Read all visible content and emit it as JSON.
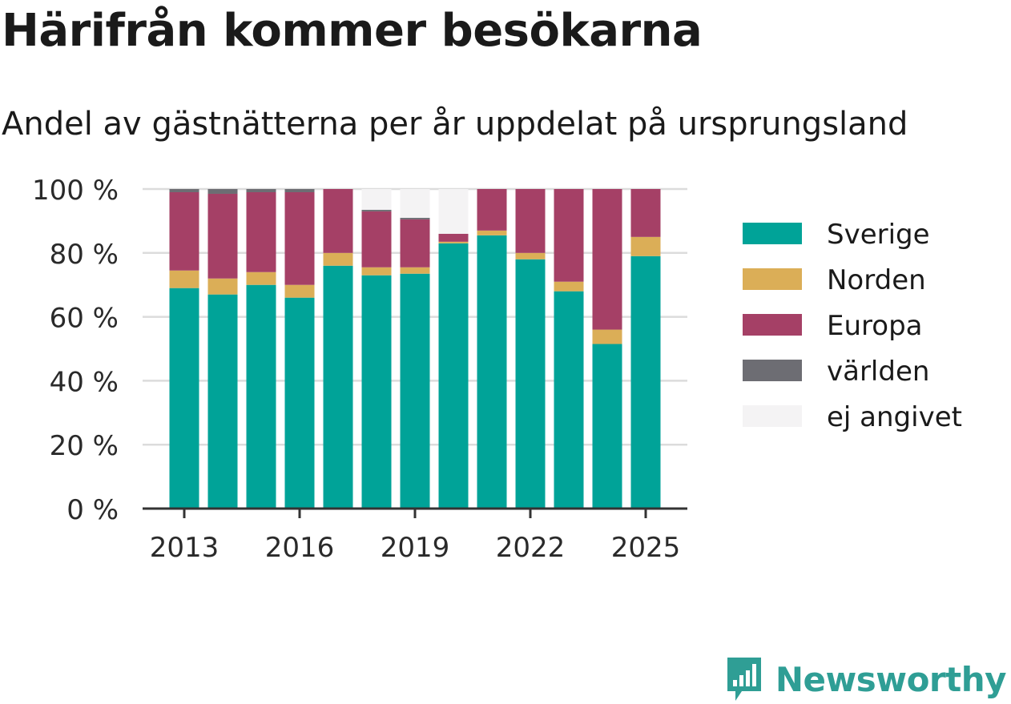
{
  "header": {
    "title": "Härifrån kommer besökarna",
    "subtitle": "Andel av gästnätterna per år uppdelat på ursprungsland"
  },
  "brand": {
    "name": "Newsworthy",
    "icon": "newsworthy-logo-icon",
    "color": "#2f9e95"
  },
  "chart_data": {
    "type": "bar",
    "stacked": true,
    "categories": [
      "2013",
      "2014",
      "2015",
      "2016",
      "2017",
      "2018",
      "2019",
      "2020",
      "2021",
      "2022",
      "2023",
      "2024",
      "2025"
    ],
    "x_tick_labels": [
      "2013",
      "2016",
      "2019",
      "2022",
      "2025"
    ],
    "y_tick_labels": [
      "0 %",
      "20 %",
      "40 %",
      "60 %",
      "80 %",
      "100 %"
    ],
    "ylim": [
      0,
      100
    ],
    "y_ticks": [
      0,
      20,
      40,
      60,
      80,
      100
    ],
    "grid": true,
    "legend_position": "right",
    "series": [
      {
        "name": "Sverige",
        "color": "#00a398",
        "values": [
          69,
          67,
          70,
          66,
          76,
          73,
          73.5,
          83,
          85.5,
          78,
          68,
          51.5,
          79
        ]
      },
      {
        "name": "Norden",
        "color": "#dbae57",
        "values": [
          5.5,
          5,
          4,
          4,
          4,
          2.5,
          2,
          0.5,
          1.5,
          2,
          3,
          4.5,
          6
        ]
      },
      {
        "name": "Europa",
        "color": "#a54066",
        "values": [
          24.5,
          26.5,
          25,
          29,
          20,
          17.5,
          15,
          2.5,
          13,
          20,
          29,
          44,
          15
        ]
      },
      {
        "name": "världen",
        "color": "#6d6d73",
        "values": [
          1,
          1.5,
          1,
          1,
          0,
          0.5,
          0.5,
          0,
          0,
          0,
          0,
          0,
          0
        ]
      },
      {
        "name": "ej angivet",
        "color": "#f4f3f4",
        "values": [
          0,
          0,
          0,
          0,
          0,
          6.5,
          9,
          14,
          0,
          0,
          0,
          0,
          0
        ]
      }
    ]
  }
}
